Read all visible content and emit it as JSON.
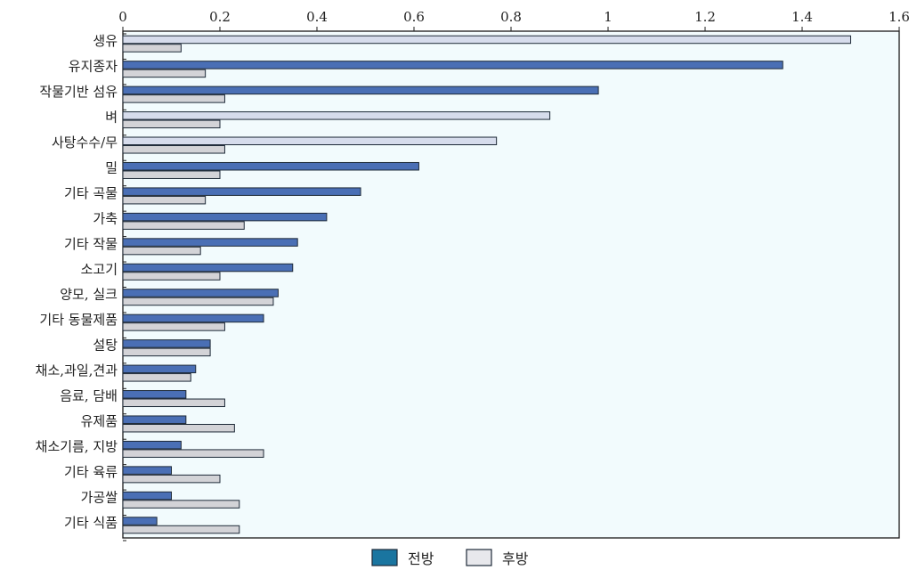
{
  "chart_data": {
    "type": "bar",
    "orientation": "horizontal",
    "title": "",
    "xlabel": "",
    "ylabel": "",
    "xlim": [
      0,
      1.6
    ],
    "x_ticks": [
      "0",
      "0.2",
      "0.4",
      "0.6",
      "0.8",
      "1",
      "1.2",
      "1.4",
      "1.6"
    ],
    "x_tick_values": [
      0,
      0.2,
      0.4,
      0.6,
      0.8,
      1.0,
      1.2,
      1.4,
      1.6
    ],
    "x_axis_position": "top",
    "grid": false,
    "legend_position": "bottom-center",
    "plot_background": "#f2fbfd",
    "categories": [
      "생유",
      "유지종자",
      "작물기반 섬유",
      "벼",
      "사탕수수/무",
      "밀",
      "기타 곡물",
      "가축",
      "기타 작물",
      "소고기",
      "양모, 실크",
      "기타 동물제품",
      "설탕",
      "채소,과일,견과",
      "음료, 담배",
      "유제품",
      "채소기름, 지방",
      "기타 육류",
      "가공쌀",
      "기타 식품"
    ],
    "series": [
      {
        "name": "전방",
        "color": "#4a6fb5",
        "values": [
          1.5,
          1.36,
          0.98,
          0.88,
          0.77,
          0.61,
          0.49,
          0.42,
          0.36,
          0.35,
          0.32,
          0.29,
          0.18,
          0.15,
          0.13,
          0.13,
          0.12,
          0.1,
          0.1,
          0.07
        ],
        "colors_override": {
          "0": "#d6dcec",
          "3": "#d6dcec",
          "4": "#d6dcec"
        }
      },
      {
        "name": "후방",
        "color": "#d3d3d7",
        "values": [
          0.12,
          0.17,
          0.21,
          0.2,
          0.21,
          0.2,
          0.17,
          0.25,
          0.16,
          0.2,
          0.31,
          0.21,
          0.18,
          0.14,
          0.21,
          0.23,
          0.29,
          0.2,
          0.24,
          0.24
        ]
      }
    ],
    "legend": [
      {
        "label": "전방",
        "color": "#1a75a0"
      },
      {
        "label": "후방",
        "color": "#e8e8ec"
      }
    ]
  }
}
